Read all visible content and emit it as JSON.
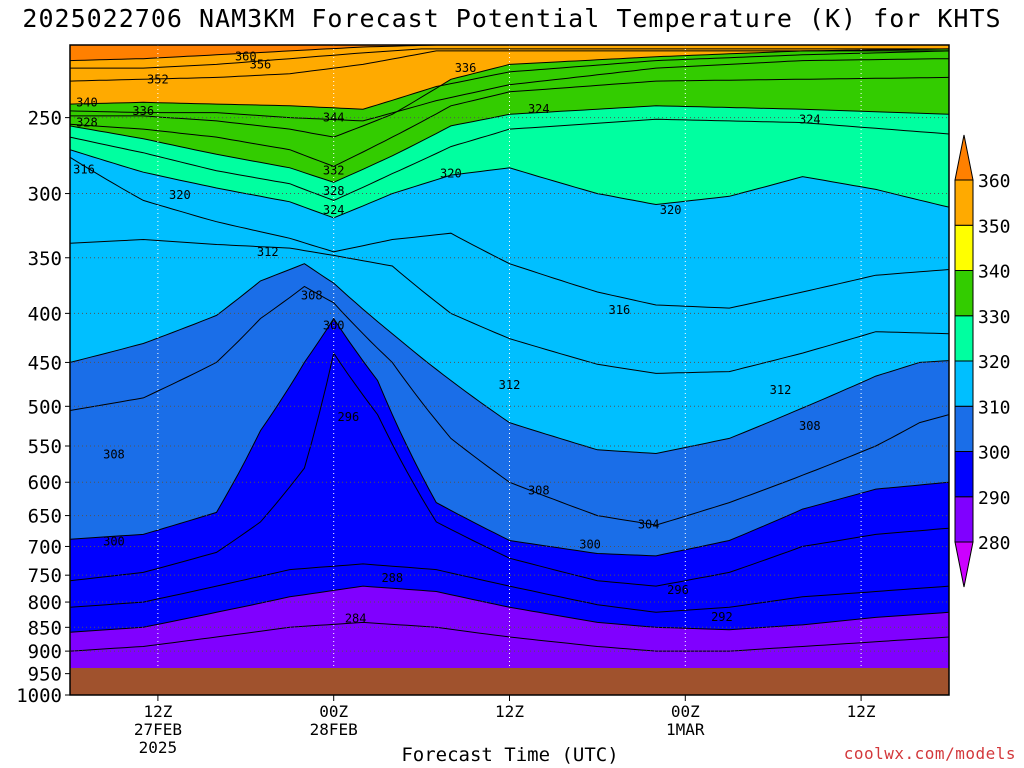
{
  "title": "2025022706 NAM3KM Forecast Potential Temperature (K) for KHTS",
  "credit": "coolwx.com/models",
  "chart_data": {
    "type": "heatmap",
    "title": "2025022706 NAM3KM Forecast Potential Temperature (K) for KHTS",
    "xlabel": "Forecast Time (UTC)",
    "ylabel": "",
    "y_scale": "log",
    "y_reversed": true,
    "ylim": [
      1000,
      210
    ],
    "y_ticks": [
      250,
      300,
      350,
      400,
      450,
      500,
      550,
      600,
      650,
      700,
      750,
      800,
      850,
      900,
      950,
      1000
    ],
    "x_ticks": [
      {
        "hour": 6,
        "lines": [
          "12Z",
          "27FEB",
          "2025"
        ]
      },
      {
        "hour": 18,
        "lines": [
          "00Z",
          "28FEB"
        ]
      },
      {
        "hour": 30,
        "lines": [
          "12Z"
        ]
      },
      {
        "hour": 42,
        "lines": [
          "00Z",
          "1MAR"
        ]
      },
      {
        "hour": 54,
        "lines": [
          "12Z"
        ]
      }
    ],
    "xlim": [
      0,
      60
    ],
    "grid": true,
    "colorbar": {
      "levels": [
        280,
        290,
        300,
        310,
        320,
        330,
        340,
        350,
        360
      ],
      "colors": [
        "#cc00ff",
        "#8000ff",
        "#0000ff",
        "#1a6ee8",
        "#00bfff",
        "#00ffa0",
        "#33cc00",
        "#ffff00",
        "#ffaa00",
        "#ff8000"
      ]
    },
    "ground_color": "#a0522d",
    "contour_interval": 2,
    "contours": [
      {
        "value": 360,
        "label": "360",
        "points": [
          [
            0,
            218
          ],
          [
            5,
            217
          ],
          [
            10,
            215
          ],
          [
            15,
            213
          ],
          [
            20,
            211
          ],
          [
            25,
            210
          ]
        ]
      },
      {
        "value": 356,
        "label": "356",
        "points": [
          [
            0,
            222
          ],
          [
            5,
            222
          ],
          [
            10,
            220
          ],
          [
            15,
            217
          ],
          [
            20,
            214
          ],
          [
            24,
            212
          ]
        ]
      },
      {
        "value": 352,
        "label": "352",
        "points": [
          [
            0,
            229
          ],
          [
            5,
            228
          ],
          [
            10,
            227
          ],
          [
            15,
            225
          ],
          [
            20,
            220
          ],
          [
            25,
            213
          ]
        ]
      },
      {
        "value": 344,
        "label": "344",
        "points": [
          [
            0,
            246
          ],
          [
            5,
            247
          ],
          [
            10,
            247
          ],
          [
            15,
            250
          ],
          [
            20,
            252
          ],
          [
            25,
            240
          ],
          [
            30,
            231
          ],
          [
            40,
            222
          ],
          [
            50,
            218
          ],
          [
            60,
            217
          ]
        ]
      },
      {
        "value": 340,
        "label": "340",
        "points": [
          [
            0,
            242
          ],
          [
            5,
            241
          ],
          [
            10,
            242
          ],
          [
            15,
            243
          ],
          [
            20,
            245
          ],
          [
            25,
            232
          ],
          [
            30,
            224
          ],
          [
            40,
            218
          ],
          [
            50,
            215
          ],
          [
            60,
            213
          ]
        ]
      },
      {
        "value": 336,
        "label": "336",
        "points": [
          [
            0,
            249
          ],
          [
            5,
            249
          ],
          [
            10,
            252
          ],
          [
            15,
            257
          ],
          [
            18,
            262
          ],
          [
            22,
            248
          ],
          [
            26,
            228
          ],
          [
            30,
            220
          ],
          [
            40,
            216
          ],
          [
            50,
            213
          ],
          [
            60,
            212
          ]
        ]
      },
      {
        "value": 332,
        "label": "332",
        "points": [
          [
            0,
            254
          ],
          [
            5,
            257
          ],
          [
            10,
            262
          ],
          [
            15,
            270
          ],
          [
            18,
            281
          ],
          [
            22,
            262
          ],
          [
            26,
            243
          ],
          [
            30,
            235
          ],
          [
            40,
            229
          ],
          [
            50,
            228
          ],
          [
            60,
            227
          ]
        ]
      },
      {
        "value": 328,
        "label": "328",
        "points": [
          [
            0,
            255
          ],
          [
            5,
            263
          ],
          [
            10,
            273
          ],
          [
            15,
            282
          ],
          [
            18,
            292
          ],
          [
            22,
            274
          ],
          [
            26,
            255
          ],
          [
            30,
            248
          ],
          [
            40,
            243
          ],
          [
            50,
            245
          ],
          [
            60,
            248
          ]
        ]
      },
      {
        "value": 324,
        "label": "324",
        "points": [
          [
            0,
            262
          ],
          [
            5,
            272
          ],
          [
            10,
            284
          ],
          [
            15,
            293
          ],
          [
            18,
            305
          ],
          [
            22,
            286
          ],
          [
            26,
            268
          ],
          [
            30,
            257
          ],
          [
            40,
            251
          ],
          [
            50,
            253
          ],
          [
            60,
            260
          ]
        ]
      },
      {
        "value": 320,
        "label": "320",
        "points": [
          [
            0,
            270
          ],
          [
            5,
            285
          ],
          [
            10,
            296
          ],
          [
            15,
            306
          ],
          [
            18,
            318
          ],
          [
            22,
            300
          ],
          [
            26,
            287
          ],
          [
            30,
            282
          ],
          [
            36,
            300
          ],
          [
            40,
            308
          ],
          [
            45,
            302
          ],
          [
            50,
            288
          ],
          [
            55,
            297
          ],
          [
            60,
            310
          ]
        ]
      },
      {
        "value": 316,
        "label": "316",
        "points": [
          [
            0,
            275
          ],
          [
            5,
            305
          ],
          [
            10,
            321
          ],
          [
            15,
            334
          ],
          [
            18,
            345
          ],
          [
            22,
            335
          ],
          [
            26,
            330
          ],
          [
            30,
            355
          ],
          [
            36,
            380
          ],
          [
            40,
            392
          ],
          [
            45,
            395
          ],
          [
            50,
            380
          ],
          [
            55,
            365
          ],
          [
            60,
            360
          ]
        ]
      },
      {
        "value": 312,
        "label": "312",
        "points": [
          [
            0,
            338
          ],
          [
            5,
            335
          ],
          [
            10,
            339
          ],
          [
            15,
            342
          ],
          [
            18,
            348
          ],
          [
            22,
            357
          ],
          [
            26,
            400
          ],
          [
            30,
            425
          ],
          [
            36,
            452
          ],
          [
            40,
            462
          ],
          [
            45,
            460
          ],
          [
            50,
            440
          ],
          [
            55,
            418
          ],
          [
            60,
            420
          ]
        ]
      },
      {
        "value": 308,
        "label": "308",
        "points": [
          [
            0,
            450
          ],
          [
            5,
            430
          ],
          [
            10,
            402
          ],
          [
            13,
            370
          ],
          [
            16,
            355
          ],
          [
            18,
            372
          ],
          [
            22,
            420
          ],
          [
            26,
            470
          ],
          [
            30,
            520
          ],
          [
            36,
            555
          ],
          [
            40,
            560
          ],
          [
            45,
            540
          ],
          [
            50,
            502
          ],
          [
            55,
            465
          ],
          [
            58,
            450
          ],
          [
            60,
            448
          ]
        ]
      },
      {
        "value": 304,
        "label": "304",
        "points": [
          [
            0,
            505
          ],
          [
            5,
            490
          ],
          [
            10,
            450
          ],
          [
            13,
            405
          ],
          [
            16,
            375
          ],
          [
            18,
            390
          ],
          [
            22,
            450
          ],
          [
            26,
            540
          ],
          [
            30,
            600
          ],
          [
            36,
            650
          ],
          [
            40,
            665
          ],
          [
            45,
            630
          ],
          [
            50,
            590
          ],
          [
            55,
            550
          ],
          [
            58,
            520
          ],
          [
            60,
            510
          ]
        ]
      },
      {
        "value": 300,
        "label": "300",
        "points": [
          [
            0,
            688
          ],
          [
            5,
            680
          ],
          [
            10,
            645
          ],
          [
            13,
            530
          ],
          [
            16,
            450
          ],
          [
            18,
            405
          ],
          [
            21,
            470
          ],
          [
            25,
            630
          ],
          [
            30,
            690
          ],
          [
            36,
            712
          ],
          [
            40,
            716
          ],
          [
            45,
            690
          ],
          [
            50,
            640
          ],
          [
            55,
            610
          ],
          [
            60,
            600
          ]
        ]
      },
      {
        "value": 296,
        "label": "296",
        "points": [
          [
            0,
            760
          ],
          [
            5,
            745
          ],
          [
            10,
            710
          ],
          [
            13,
            660
          ],
          [
            16,
            580
          ],
          [
            18,
            440
          ],
          [
            21,
            510
          ],
          [
            25,
            660
          ],
          [
            30,
            720
          ],
          [
            36,
            760
          ],
          [
            40,
            770
          ],
          [
            45,
            745
          ],
          [
            50,
            700
          ],
          [
            55,
            680
          ],
          [
            60,
            670
          ]
        ]
      },
      {
        "value": 292,
        "label": "292",
        "points": [
          [
            0,
            810
          ],
          [
            5,
            800
          ],
          [
            10,
            770
          ],
          [
            15,
            740
          ],
          [
            20,
            730
          ],
          [
            25,
            740
          ],
          [
            30,
            770
          ],
          [
            36,
            805
          ],
          [
            40,
            820
          ],
          [
            45,
            810
          ],
          [
            50,
            790
          ],
          [
            55,
            780
          ],
          [
            60,
            770
          ]
        ]
      },
      {
        "value": 288,
        "label": "288",
        "points": [
          [
            0,
            860
          ],
          [
            5,
            850
          ],
          [
            10,
            820
          ],
          [
            15,
            790
          ],
          [
            20,
            770
          ],
          [
            25,
            780
          ],
          [
            30,
            810
          ],
          [
            36,
            840
          ],
          [
            40,
            850
          ],
          [
            45,
            855
          ],
          [
            50,
            845
          ],
          [
            55,
            830
          ],
          [
            60,
            820
          ]
        ]
      },
      {
        "value": 284,
        "label": "284",
        "points": [
          [
            0,
            900
          ],
          [
            5,
            890
          ],
          [
            10,
            870
          ],
          [
            15,
            850
          ],
          [
            20,
            840
          ],
          [
            25,
            850
          ],
          [
            30,
            870
          ],
          [
            36,
            890
          ],
          [
            40,
            900
          ],
          [
            45,
            900
          ],
          [
            50,
            890
          ],
          [
            55,
            880
          ],
          [
            60,
            870
          ]
        ]
      }
    ],
    "contour_labels": [
      {
        "text": "360",
        "x": 12,
        "y": 216
      },
      {
        "text": "356",
        "x": 13,
        "y": 220
      },
      {
        "text": "352",
        "x": 6,
        "y": 228
      },
      {
        "text": "340",
        "x": 0.2,
        "y": 241
      },
      {
        "text": "336",
        "x": 5,
        "y": 246
      },
      {
        "text": "328",
        "x": 0.2,
        "y": 253
      },
      {
        "text": "344",
        "x": 18,
        "y": 250
      },
      {
        "text": "336",
        "x": 27,
        "y": 222
      },
      {
        "text": "324",
        "x": 32,
        "y": 245
      },
      {
        "text": "324",
        "x": 50.5,
        "y": 251
      },
      {
        "text": "316",
        "x": 0,
        "y": 283
      },
      {
        "text": "320",
        "x": 7.5,
        "y": 301
      },
      {
        "text": "332",
        "x": 18,
        "y": 284
      },
      {
        "text": "328",
        "x": 18,
        "y": 298
      },
      {
        "text": "324",
        "x": 18,
        "y": 312
      },
      {
        "text": "320",
        "x": 26,
        "y": 286
      },
      {
        "text": "320",
        "x": 41,
        "y": 312
      },
      {
        "text": "312",
        "x": 13.5,
        "y": 345
      },
      {
        "text": "308",
        "x": 16.5,
        "y": 383
      },
      {
        "text": "316",
        "x": 37.5,
        "y": 397
      },
      {
        "text": "300",
        "x": 18,
        "y": 412
      },
      {
        "text": "312",
        "x": 30,
        "y": 475
      },
      {
        "text": "312",
        "x": 48.5,
        "y": 481
      },
      {
        "text": "296",
        "x": 19,
        "y": 513
      },
      {
        "text": "308",
        "x": 50.5,
        "y": 524
      },
      {
        "text": "308",
        "x": 3,
        "y": 561
      },
      {
        "text": "308",
        "x": 32,
        "y": 612
      },
      {
        "text": "304",
        "x": 39.5,
        "y": 664
      },
      {
        "text": "300",
        "x": 3,
        "y": 692
      },
      {
        "text": "300",
        "x": 35.5,
        "y": 697
      },
      {
        "text": "288",
        "x": 22,
        "y": 755
      },
      {
        "text": "296",
        "x": 41.5,
        "y": 777
      },
      {
        "text": "292",
        "x": 44.5,
        "y": 829
      },
      {
        "text": "284",
        "x": 19.5,
        "y": 832
      }
    ],
    "colorbar_labels": [
      "360",
      "350",
      "340",
      "330",
      "320",
      "310",
      "300",
      "290",
      "280"
    ]
  }
}
